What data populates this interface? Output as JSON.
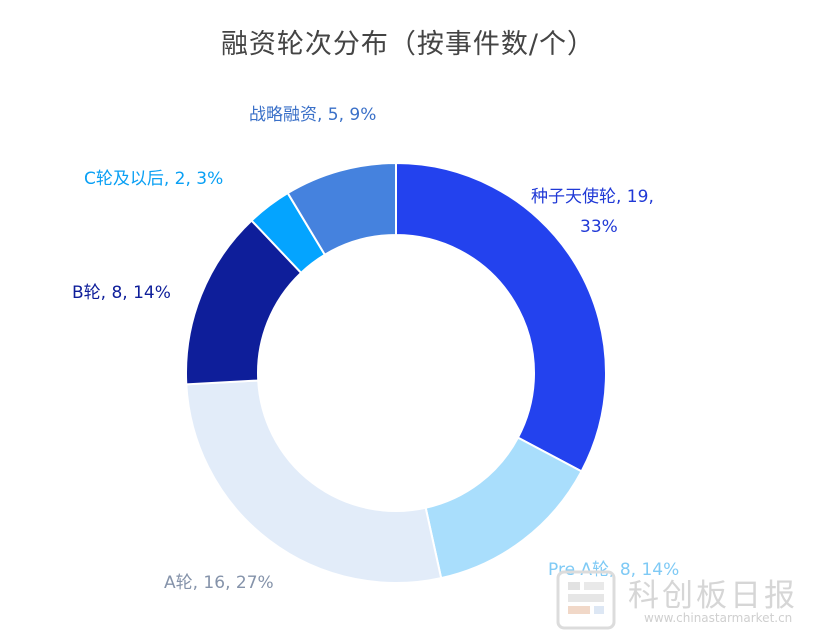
{
  "chart_data": {
    "type": "pie",
    "variant": "donut",
    "title": "融资轮次分布（按事件数/个）",
    "start": "top, clockwise",
    "slices": [
      {
        "name": "种子天使轮",
        "value": 19,
        "percent": "33%",
        "color": "#2342ee",
        "label_color": "#2039d6",
        "label": "种子天使轮, 19,",
        "label_line2": "33%"
      },
      {
        "name": "Pre A轮",
        "value": 8,
        "percent": "14%",
        "color": "#a9defc",
        "label_color": "#7fcaf5",
        "label": "Pre A轮, 8, 14%"
      },
      {
        "name": "A轮",
        "value": 16,
        "percent": "27%",
        "color": "#e2ecf9",
        "label_color": "#8593aa",
        "label": "A轮, 16, 27%"
      },
      {
        "name": "B轮",
        "value": 8,
        "percent": "14%",
        "color": "#0e1e9a",
        "label_color": "#0e1e9a",
        "label": "B轮, 8, 14%"
      },
      {
        "name": "C轮及以后",
        "value": 2,
        "percent": "3%",
        "color": "#04a4ff",
        "label_color": "#0aa0f4",
        "label": "C轮及以后, 2, 3%"
      },
      {
        "name": "战略融资",
        "value": 5,
        "percent": "9%",
        "color": "#4582de",
        "label_color": "#3a70c8",
        "label": "战略融资, 5, 9%"
      }
    ]
  },
  "watermark": {
    "text": "科创板日报",
    "url": "www.chinastarmarket.cn"
  }
}
